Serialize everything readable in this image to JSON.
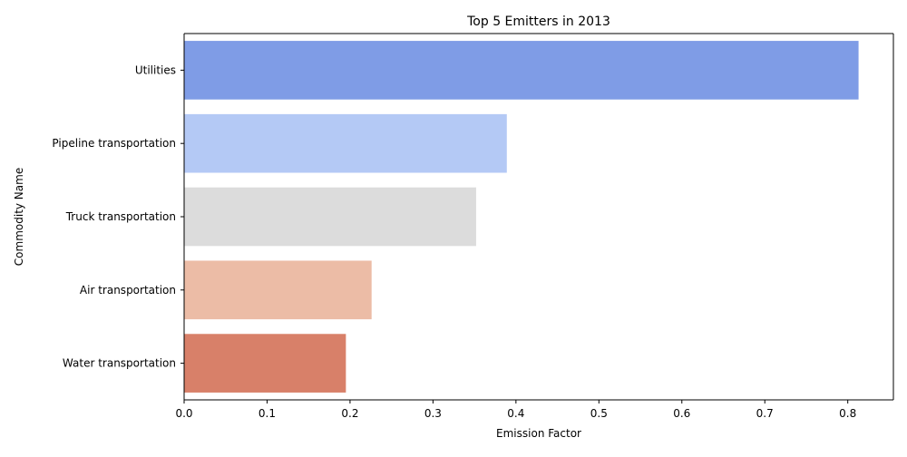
{
  "chart_data": {
    "type": "bar",
    "orientation": "horizontal",
    "title": "Top 5 Emitters in 2013",
    "xlabel": "Emission Factor",
    "ylabel": "Commodity Name",
    "categories": [
      "Utilities",
      "Pipeline transportation",
      "Truck transportation",
      "Air transportation",
      "Water transportation"
    ],
    "values": [
      0.813,
      0.389,
      0.352,
      0.226,
      0.195
    ],
    "colors": [
      "#7f9ce6",
      "#b4c9f5",
      "#dcdcdc",
      "#ecbca6",
      "#d88069"
    ],
    "xlim": [
      0,
      0.855
    ],
    "xticks": [
      0.0,
      0.1,
      0.2,
      0.3,
      0.4,
      0.5,
      0.6,
      0.7,
      0.8
    ],
    "xtick_labels": [
      "0.0",
      "0.1",
      "0.2",
      "0.3",
      "0.4",
      "0.5",
      "0.6",
      "0.7",
      "0.8"
    ],
    "grid": false,
    "legend": "none"
  }
}
